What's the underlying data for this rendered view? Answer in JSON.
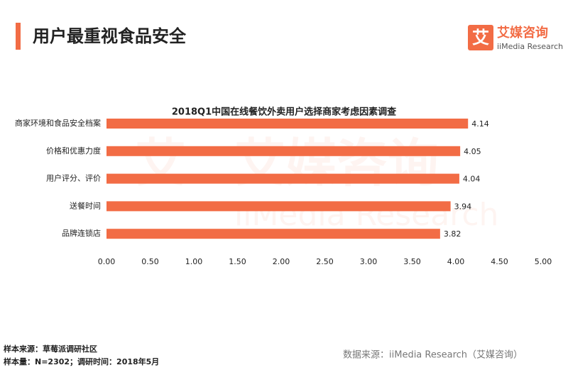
{
  "header": {
    "title": "用户最重视食品安全"
  },
  "logo": {
    "icon": "艾",
    "name": "艾媒咨询",
    "subtitle": "iiMedia Research"
  },
  "chart_data": {
    "type": "bar",
    "orientation": "horizontal",
    "title": "2018Q1中国在线餐饮外卖用户选择商家考虑因素调查",
    "categories": [
      "商家环境和食品安全档案",
      "价格和优惠力度",
      "用户评分、评价",
      "送餐时间",
      "品牌连锁店"
    ],
    "values": [
      4.14,
      4.05,
      4.04,
      3.94,
      3.82
    ],
    "color": "#f26c45",
    "xlim": [
      0,
      5
    ],
    "xticks": [
      {
        "value": 0,
        "label": "0.00"
      },
      {
        "value": 0.5,
        "label": "0.50"
      },
      {
        "value": 1,
        "label": "1.00"
      },
      {
        "value": 1.5,
        "label": "1.50"
      },
      {
        "value": 2,
        "label": "2.00"
      },
      {
        "value": 2.5,
        "label": "2.50"
      },
      {
        "value": 3,
        "label": "3.00"
      },
      {
        "value": 3.5,
        "label": "3.50"
      },
      {
        "value": 4,
        "label": "4.00"
      },
      {
        "value": 4.5,
        "label": "4.50"
      },
      {
        "value": 5,
        "label": "5.00"
      }
    ],
    "grid": false
  },
  "footer": {
    "sample_source": "样本来源：草莓派调研社区",
    "sample_size": "样本量：N=2302；调研时间：2018年5月",
    "data_source": "数据来源：iiMedia Research（艾媒咨询）"
  }
}
